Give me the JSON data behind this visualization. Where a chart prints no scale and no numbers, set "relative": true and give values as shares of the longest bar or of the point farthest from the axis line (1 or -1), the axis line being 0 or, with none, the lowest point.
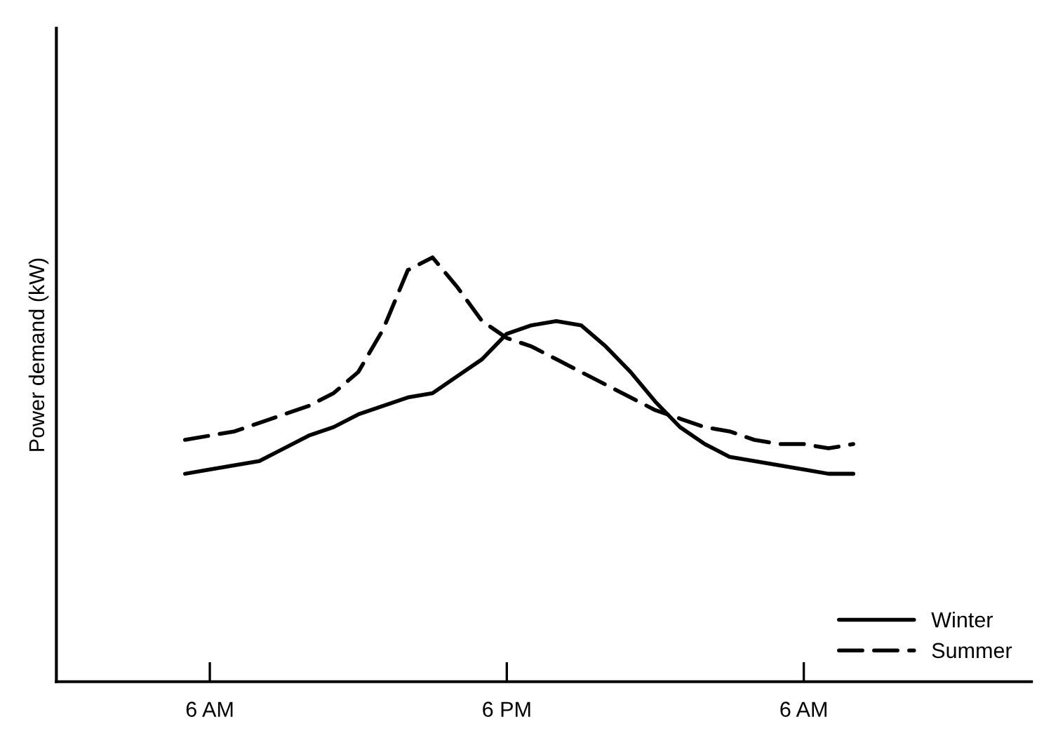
{
  "chart_data": {
    "type": "line",
    "relative": true,
    "ylabel": "Power demand (kW)",
    "categories": [
      null,
      null,
      null,
      null,
      null,
      null,
      "6 AM",
      null,
      null,
      null,
      null,
      null,
      null,
      null,
      null,
      null,
      null,
      null,
      "6 PM",
      null,
      null,
      null,
      null,
      null,
      null,
      null,
      null,
      null,
      null,
      null,
      "6 AM",
      null,
      null,
      null,
      null,
      null,
      null,
      null,
      null,
      null
    ],
    "grid": false,
    "legend": "bottom right",
    "marker": "none",
    "series": [
      {
        "name": "Winter",
        "color": "#000000",
        "line_style": "solid",
        "values": [
          null,
          null,
          null,
          null,
          null,
          0.49,
          0.5,
          0.51,
          0.52,
          0.55,
          0.58,
          0.6,
          0.63,
          0.65,
          0.67,
          0.68,
          0.72,
          0.76,
          0.82,
          0.84,
          0.85,
          0.84,
          0.79,
          0.73,
          0.66,
          0.6,
          0.56,
          0.53,
          0.52,
          0.51,
          0.5,
          0.49,
          0.49,
          null,
          null,
          null,
          null,
          null,
          null,
          null
        ]
      },
      {
        "name": "Summer",
        "color": "#000000",
        "line_style": "dashed",
        "values": [
          null,
          null,
          null,
          null,
          null,
          0.57,
          0.58,
          0.59,
          0.61,
          0.63,
          0.65,
          0.68,
          0.73,
          0.83,
          0.97,
          1.0,
          0.93,
          0.85,
          0.81,
          0.79,
          0.76,
          0.73,
          0.7,
          0.67,
          0.64,
          0.62,
          0.6,
          0.59,
          0.57,
          0.56,
          0.56,
          0.55,
          0.56,
          null,
          null,
          null,
          null,
          null,
          null,
          null
        ]
      }
    ]
  }
}
